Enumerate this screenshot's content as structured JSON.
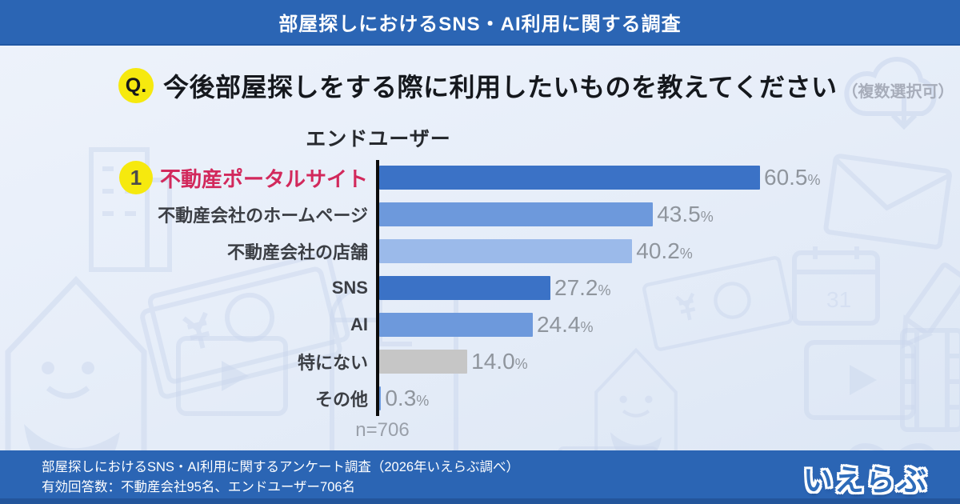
{
  "header": {
    "title": "部屋探しにおけるSNS・AI利用に関する調査"
  },
  "question": {
    "badge": "Q.",
    "text": "今後部屋探しをする際に利用したいものを教えてください",
    "note": "（複数選択可）"
  },
  "chart_data": {
    "type": "bar",
    "orientation": "horizontal",
    "title": "エンドユーザー",
    "categories": [
      "不動産ポータルサイト",
      "不動産会社のホームページ",
      "不動産会社の店舗",
      "SNS",
      "AI",
      "特にない",
      "その他"
    ],
    "values": [
      60.5,
      43.5,
      40.2,
      27.2,
      24.4,
      14.0,
      0.3
    ],
    "value_suffix": "%",
    "xlim": [
      0,
      62
    ],
    "grid": false,
    "legend": "none",
    "sample_size": "n=706",
    "highlight": {
      "index": 0,
      "rank_badge": "1",
      "label_color": "#d2295c"
    },
    "bar_colors": [
      "#3b72c6",
      "#6d99dc",
      "#9bbaea",
      "#3b72c6",
      "#6d99dc",
      "#c6c6c6",
      "#6d99dc"
    ],
    "value_label_color": "#8f959d"
  },
  "footer": {
    "line1": "部屋探しにおけるSNS・AI利用に関するアンケート調査（2026年いえらぶ調べ）",
    "line2": "有効回答数：不動産会社95名、エンドユーザー706名",
    "logo": "いえらぶ"
  },
  "colors": {
    "bar_blue": "#2b65b4",
    "background": "#e7eef9",
    "accent_yellow": "#f6e90e",
    "highlight_red": "#d2295c",
    "watermark": "#ccd8ee"
  },
  "background": {
    "watermark_icons": [
      "banknote-icon",
      "cloud-download-icon",
      "envelope-icon",
      "calendar-icon",
      "play-video-icon",
      "house-mascot-icon",
      "floor-plan-icon",
      "pencil-icon",
      "film-strip-icon",
      "infinity-icon",
      "building-icon",
      "browser-window-icon"
    ]
  }
}
